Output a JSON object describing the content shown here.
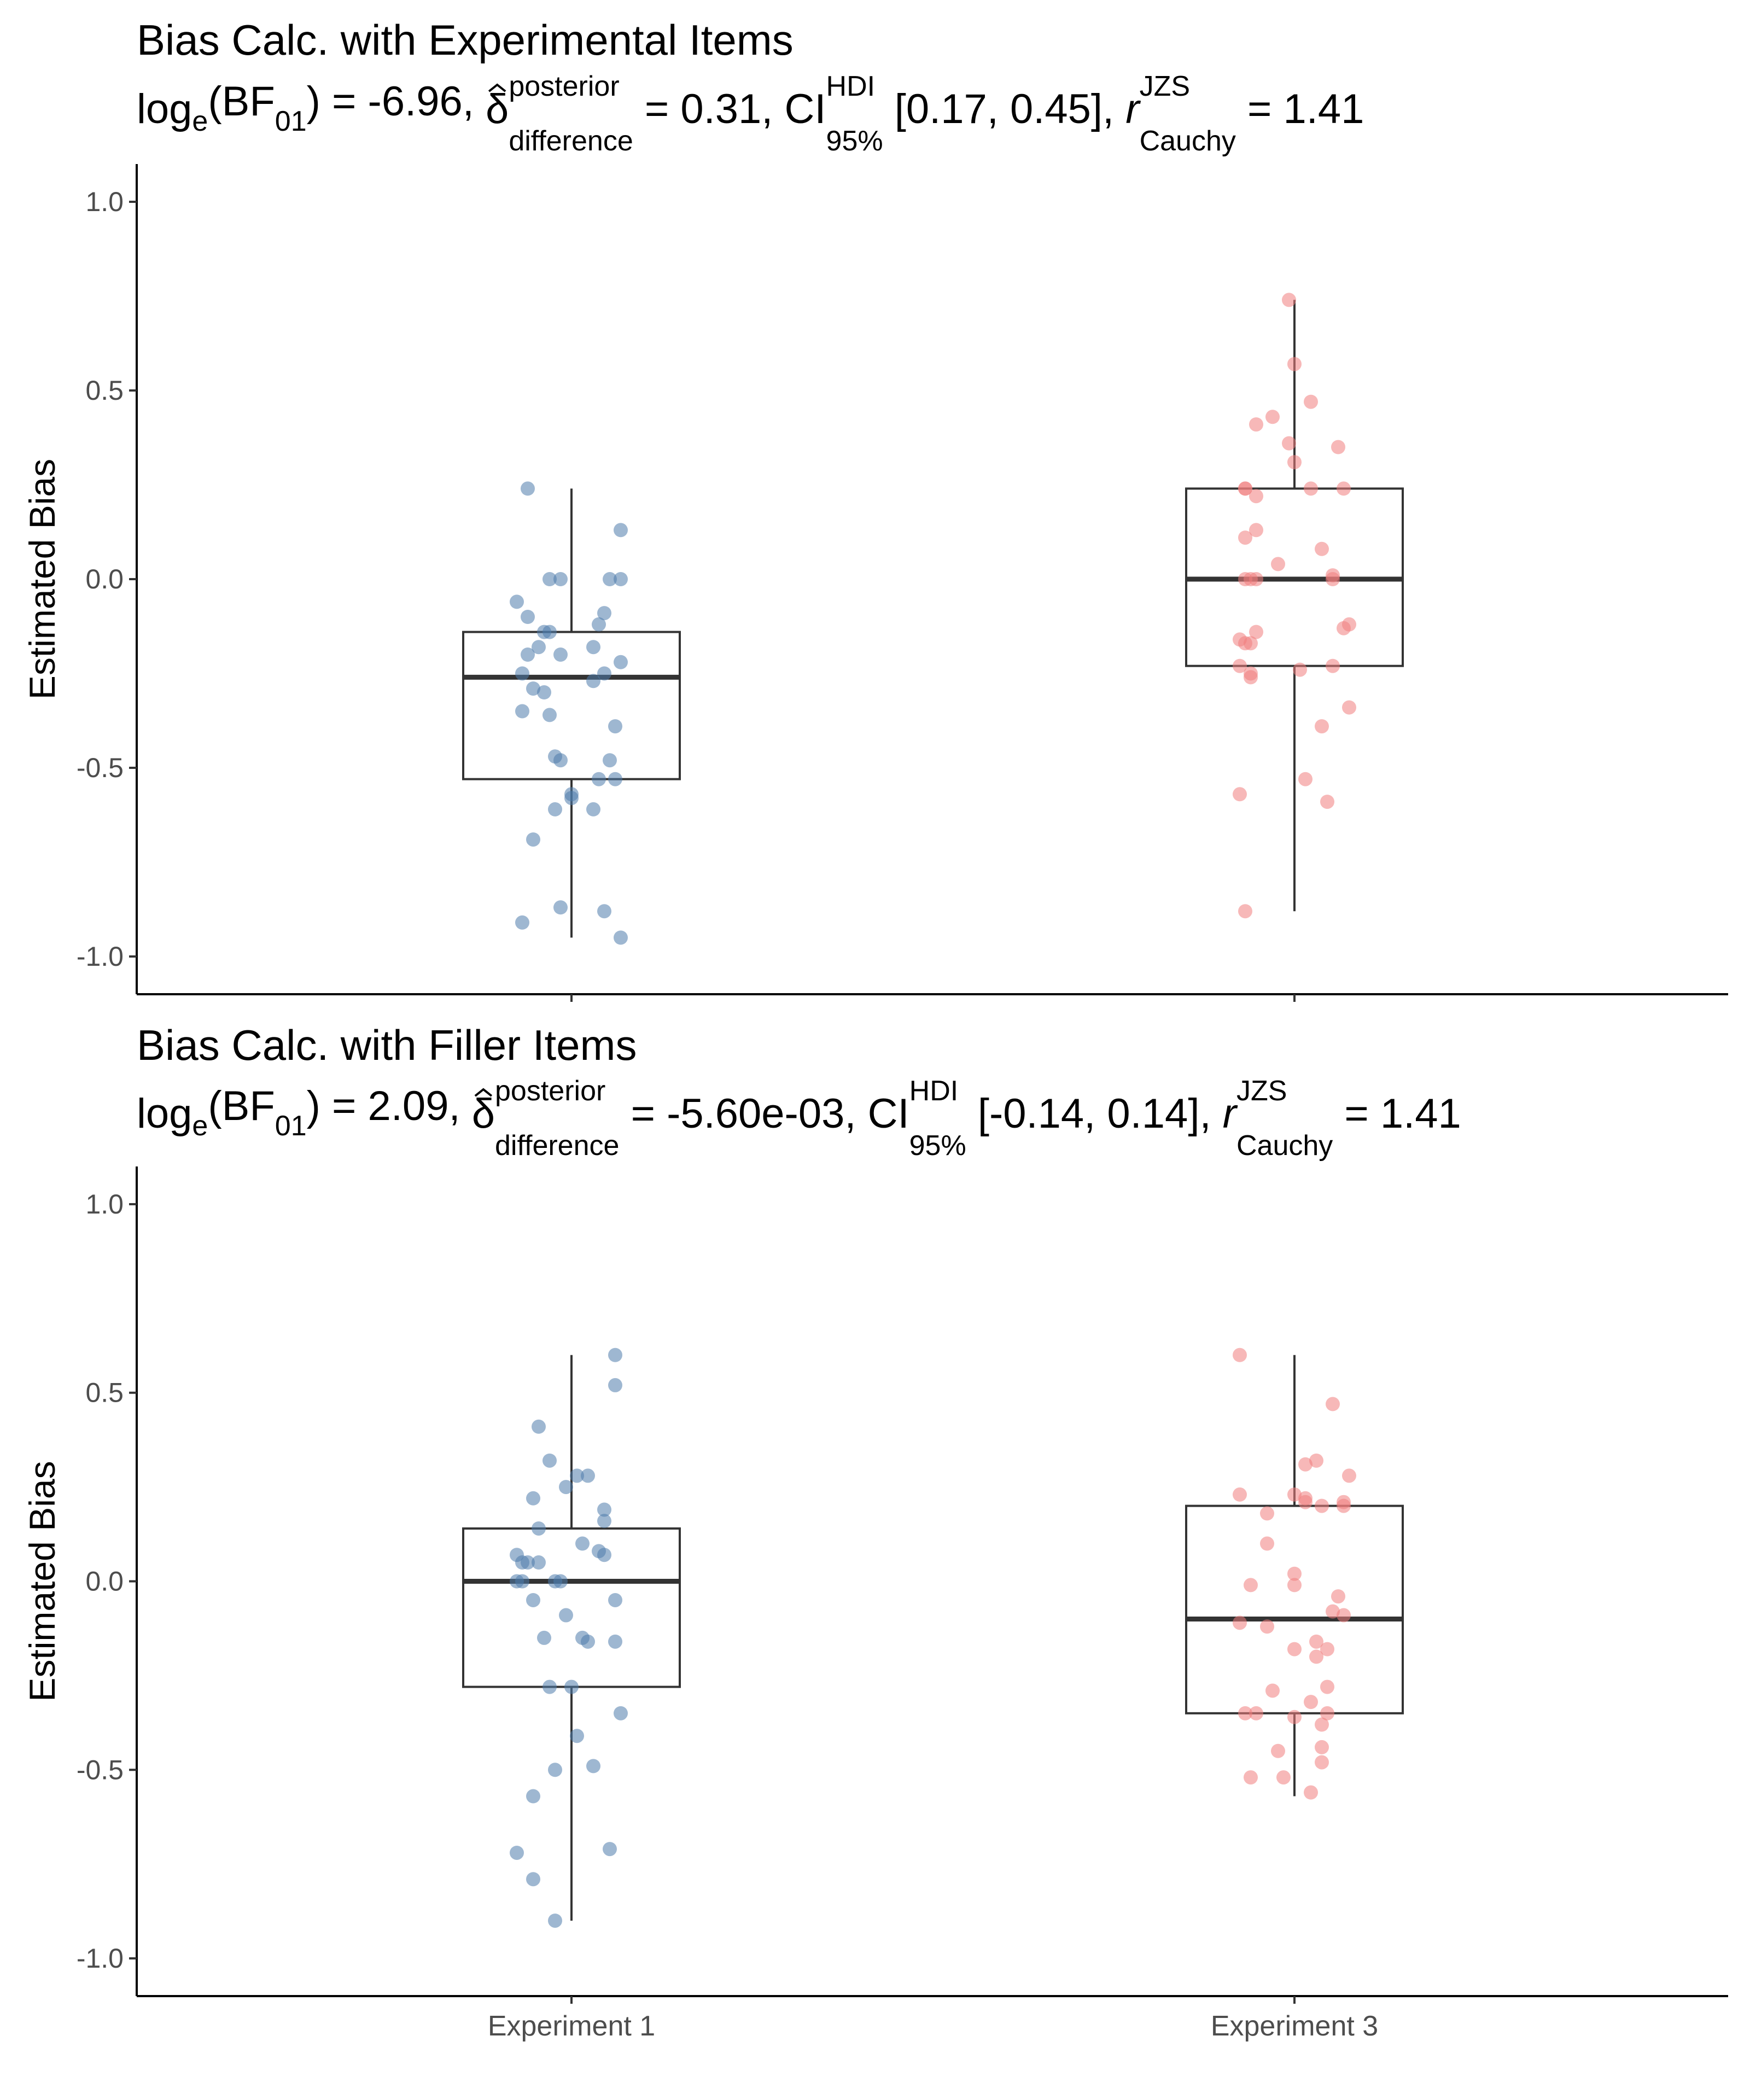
{
  "chart_data": [
    {
      "type": "boxplot",
      "title": "Bias Calc. with Experimental Items",
      "subtitle": {
        "log_label": "log",
        "log_sub": "e",
        "bf_label": "(BF",
        "bf_sub": "01",
        "bf_value": ") = -6.96, ",
        "delta_symbol": "δ",
        "delta_sup": "posterior",
        "delta_sub": "difference",
        "delta_value": " = 0.31, ",
        "ci_label": "CI",
        "ci_sup": "HDI",
        "ci_sub": "95%",
        "ci_value": " [0.17, 0.45], ",
        "r_label": "r",
        "r_sup": "JZS",
        "r_sub": "Cauchy",
        "r_value": " = 1.41"
      },
      "ylabel": "Estimated Bias",
      "xlabel": "",
      "ylim": [
        -1.1,
        1.1
      ],
      "yticks": [
        "-1.0",
        "-0.5",
        "0.0",
        "0.5",
        "1.0"
      ],
      "show_x_tick_labels": false,
      "categories": [
        "Experiment 1",
        "Experiment 3"
      ],
      "series": [
        {
          "name": "Experiment 1",
          "color": "#4f7bac",
          "box": {
            "min": -0.95,
            "q1": -0.53,
            "median": -0.26,
            "q3": -0.14,
            "max": 0.24
          },
          "points": [
            {
              "x": -0.08,
              "y": 0.24
            },
            {
              "x": 0.09,
              "y": 0.13
            },
            {
              "x": -0.04,
              "y": 0.0
            },
            {
              "x": -0.02,
              "y": 0.0
            },
            {
              "x": 0.07,
              "y": 0.0
            },
            {
              "x": 0.09,
              "y": 0.0
            },
            {
              "x": -0.1,
              "y": -0.06
            },
            {
              "x": -0.08,
              "y": -0.1
            },
            {
              "x": 0.06,
              "y": -0.09
            },
            {
              "x": 0.05,
              "y": -0.12
            },
            {
              "x": -0.05,
              "y": -0.14
            },
            {
              "x": -0.04,
              "y": -0.14
            },
            {
              "x": -0.06,
              "y": -0.18
            },
            {
              "x": -0.08,
              "y": -0.2
            },
            {
              "x": -0.02,
              "y": -0.2
            },
            {
              "x": 0.04,
              "y": -0.18
            },
            {
              "x": 0.09,
              "y": -0.22
            },
            {
              "x": -0.09,
              "y": -0.25
            },
            {
              "x": 0.06,
              "y": -0.25
            },
            {
              "x": 0.04,
              "y": -0.27
            },
            {
              "x": -0.07,
              "y": -0.29
            },
            {
              "x": -0.05,
              "y": -0.3
            },
            {
              "x": -0.09,
              "y": -0.35
            },
            {
              "x": -0.04,
              "y": -0.36
            },
            {
              "x": 0.08,
              "y": -0.39
            },
            {
              "x": -0.03,
              "y": -0.47
            },
            {
              "x": -0.02,
              "y": -0.48
            },
            {
              "x": 0.07,
              "y": -0.48
            },
            {
              "x": 0.05,
              "y": -0.53
            },
            {
              "x": 0.08,
              "y": -0.53
            },
            {
              "x": 0.0,
              "y": -0.57
            },
            {
              "x": 0.0,
              "y": -0.58
            },
            {
              "x": -0.03,
              "y": -0.61
            },
            {
              "x": 0.04,
              "y": -0.61
            },
            {
              "x": -0.07,
              "y": -0.69
            },
            {
              "x": -0.02,
              "y": -0.87
            },
            {
              "x": 0.06,
              "y": -0.88
            },
            {
              "x": -0.09,
              "y": -0.91
            },
            {
              "x": 0.09,
              "y": -0.95
            }
          ]
        },
        {
          "name": "Experiment 3",
          "color": "#f07e7e",
          "box": {
            "min": -0.88,
            "q1": -0.23,
            "median": 0.0,
            "q3": 0.24,
            "max": 0.74
          },
          "points": [
            {
              "x": -0.01,
              "y": 0.74
            },
            {
              "x": 0.0,
              "y": 0.57
            },
            {
              "x": 0.03,
              "y": 0.47
            },
            {
              "x": -0.04,
              "y": 0.43
            },
            {
              "x": -0.07,
              "y": 0.41
            },
            {
              "x": -0.01,
              "y": 0.36
            },
            {
              "x": 0.08,
              "y": 0.35
            },
            {
              "x": 0.0,
              "y": 0.31
            },
            {
              "x": -0.09,
              "y": 0.24
            },
            {
              "x": -0.09,
              "y": 0.24
            },
            {
              "x": 0.03,
              "y": 0.24
            },
            {
              "x": 0.09,
              "y": 0.24
            },
            {
              "x": -0.07,
              "y": 0.22
            },
            {
              "x": -0.07,
              "y": 0.13
            },
            {
              "x": -0.09,
              "y": 0.11
            },
            {
              "x": 0.05,
              "y": 0.08
            },
            {
              "x": -0.03,
              "y": 0.04
            },
            {
              "x": -0.09,
              "y": 0.0
            },
            {
              "x": -0.08,
              "y": 0.0
            },
            {
              "x": -0.07,
              "y": 0.0
            },
            {
              "x": 0.07,
              "y": 0.01
            },
            {
              "x": 0.07,
              "y": 0.0
            },
            {
              "x": 0.1,
              "y": -0.12
            },
            {
              "x": 0.09,
              "y": -0.13
            },
            {
              "x": -0.07,
              "y": -0.14
            },
            {
              "x": -0.1,
              "y": -0.16
            },
            {
              "x": -0.09,
              "y": -0.17
            },
            {
              "x": -0.08,
              "y": -0.17
            },
            {
              "x": -0.1,
              "y": -0.23
            },
            {
              "x": 0.01,
              "y": -0.24
            },
            {
              "x": 0.07,
              "y": -0.23
            },
            {
              "x": -0.08,
              "y": -0.25
            },
            {
              "x": -0.08,
              "y": -0.26
            },
            {
              "x": 0.1,
              "y": -0.34
            },
            {
              "x": 0.05,
              "y": -0.39
            },
            {
              "x": 0.02,
              "y": -0.53
            },
            {
              "x": -0.1,
              "y": -0.57
            },
            {
              "x": 0.06,
              "y": -0.59
            },
            {
              "x": -0.09,
              "y": -0.88
            }
          ]
        }
      ]
    },
    {
      "type": "boxplot",
      "title": "Bias Calc. with Filler Items",
      "subtitle": {
        "log_label": "log",
        "log_sub": "e",
        "bf_label": "(BF",
        "bf_sub": "01",
        "bf_value": ") = 2.09, ",
        "delta_symbol": "δ",
        "delta_sup": "posterior",
        "delta_sub": "difference",
        "delta_value": " = -5.60e-03, ",
        "ci_label": "CI",
        "ci_sup": "HDI",
        "ci_sub": "95%",
        "ci_value": " [-0.14, 0.14], ",
        "r_label": "r",
        "r_sup": "JZS",
        "r_sub": "Cauchy",
        "r_value": " = 1.41"
      },
      "ylabel": "Estimated Bias",
      "xlabel": "",
      "ylim": [
        -1.1,
        1.1
      ],
      "yticks": [
        "-1.0",
        "-0.5",
        "0.0",
        "0.5",
        "1.0"
      ],
      "show_x_tick_labels": true,
      "categories": [
        "Experiment 1",
        "Experiment 3"
      ],
      "series": [
        {
          "name": "Experiment 1",
          "color": "#4f7bac",
          "box": {
            "min": -0.9,
            "q1": -0.28,
            "median": 0.0,
            "q3": 0.14,
            "max": 0.6
          },
          "points": [
            {
              "x": 0.08,
              "y": 0.6
            },
            {
              "x": 0.08,
              "y": 0.52
            },
            {
              "x": -0.06,
              "y": 0.41
            },
            {
              "x": -0.04,
              "y": 0.32
            },
            {
              "x": 0.03,
              "y": 0.28
            },
            {
              "x": 0.01,
              "y": 0.28
            },
            {
              "x": -0.01,
              "y": 0.25
            },
            {
              "x": -0.07,
              "y": 0.22
            },
            {
              "x": 0.06,
              "y": 0.19
            },
            {
              "x": 0.06,
              "y": 0.16
            },
            {
              "x": -0.06,
              "y": 0.14
            },
            {
              "x": 0.02,
              "y": 0.1
            },
            {
              "x": 0.05,
              "y": 0.08
            },
            {
              "x": 0.06,
              "y": 0.07
            },
            {
              "x": -0.1,
              "y": 0.07
            },
            {
              "x": -0.08,
              "y": 0.05
            },
            {
              "x": -0.09,
              "y": 0.05
            },
            {
              "x": -0.06,
              "y": 0.05
            },
            {
              "x": -0.1,
              "y": 0.0
            },
            {
              "x": -0.09,
              "y": 0.0
            },
            {
              "x": -0.03,
              "y": 0.0
            },
            {
              "x": -0.02,
              "y": 0.0
            },
            {
              "x": -0.07,
              "y": -0.05
            },
            {
              "x": 0.08,
              "y": -0.05
            },
            {
              "x": -0.01,
              "y": -0.09
            },
            {
              "x": -0.05,
              "y": -0.15
            },
            {
              "x": 0.02,
              "y": -0.15
            },
            {
              "x": 0.03,
              "y": -0.16
            },
            {
              "x": 0.08,
              "y": -0.16
            },
            {
              "x": -0.04,
              "y": -0.28
            },
            {
              "x": 0.0,
              "y": -0.28
            },
            {
              "x": 0.09,
              "y": -0.35
            },
            {
              "x": 0.01,
              "y": -0.41
            },
            {
              "x": 0.04,
              "y": -0.49
            },
            {
              "x": -0.03,
              "y": -0.5
            },
            {
              "x": -0.07,
              "y": -0.57
            },
            {
              "x": 0.07,
              "y": -0.71
            },
            {
              "x": -0.1,
              "y": -0.72
            },
            {
              "x": -0.07,
              "y": -0.79
            },
            {
              "x": -0.03,
              "y": -0.9
            }
          ]
        },
        {
          "name": "Experiment 3",
          "color": "#f07e7e",
          "box": {
            "min": -0.57,
            "q1": -0.35,
            "median": -0.1,
            "q3": 0.2,
            "max": 0.6
          },
          "points": [
            {
              "x": -0.1,
              "y": 0.6
            },
            {
              "x": 0.07,
              "y": 0.47
            },
            {
              "x": 0.04,
              "y": 0.32
            },
            {
              "x": 0.02,
              "y": 0.31
            },
            {
              "x": 0.1,
              "y": 0.28
            },
            {
              "x": -0.1,
              "y": 0.23
            },
            {
              "x": 0.0,
              "y": 0.23
            },
            {
              "x": 0.02,
              "y": 0.22
            },
            {
              "x": 0.02,
              "y": 0.21
            },
            {
              "x": 0.09,
              "y": 0.21
            },
            {
              "x": 0.05,
              "y": 0.2
            },
            {
              "x": 0.09,
              "y": 0.2
            },
            {
              "x": -0.05,
              "y": 0.18
            },
            {
              "x": -0.05,
              "y": 0.1
            },
            {
              "x": 0.0,
              "y": 0.02
            },
            {
              "x": 0.0,
              "y": -0.01
            },
            {
              "x": -0.08,
              "y": -0.01
            },
            {
              "x": 0.08,
              "y": -0.04
            },
            {
              "x": 0.07,
              "y": -0.08
            },
            {
              "x": 0.09,
              "y": -0.09
            },
            {
              "x": -0.1,
              "y": -0.11
            },
            {
              "x": -0.05,
              "y": -0.12
            },
            {
              "x": 0.04,
              "y": -0.16
            },
            {
              "x": 0.0,
              "y": -0.18
            },
            {
              "x": 0.06,
              "y": -0.18
            },
            {
              "x": 0.04,
              "y": -0.2
            },
            {
              "x": 0.06,
              "y": -0.28
            },
            {
              "x": -0.04,
              "y": -0.29
            },
            {
              "x": 0.03,
              "y": -0.32
            },
            {
              "x": -0.09,
              "y": -0.35
            },
            {
              "x": -0.07,
              "y": -0.35
            },
            {
              "x": 0.0,
              "y": -0.36
            },
            {
              "x": 0.06,
              "y": -0.35
            },
            {
              "x": 0.05,
              "y": -0.38
            },
            {
              "x": 0.05,
              "y": -0.44
            },
            {
              "x": -0.03,
              "y": -0.45
            },
            {
              "x": 0.05,
              "y": -0.48
            },
            {
              "x": -0.08,
              "y": -0.52
            },
            {
              "x": -0.02,
              "y": -0.52
            },
            {
              "x": 0.03,
              "y": -0.56
            }
          ]
        }
      ]
    }
  ]
}
